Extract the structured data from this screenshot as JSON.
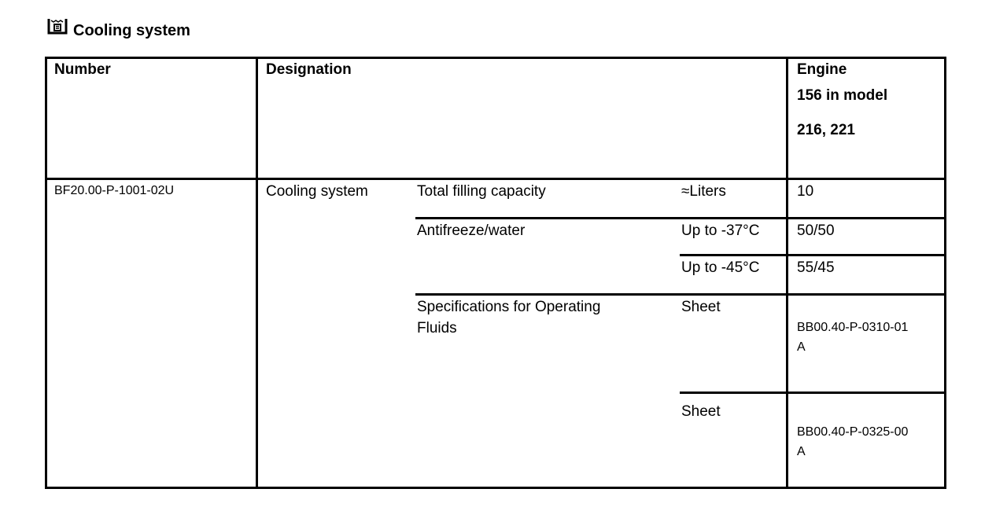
{
  "title": "Cooling system",
  "title_icon": "coolant-reservoir-icon",
  "headers": {
    "number": "Number",
    "designation": "Designation",
    "engine_line1": "Engine",
    "engine_line2": "156 in model",
    "engine_line3": "216, 221"
  },
  "row": {
    "number": "BF20.00-P-1001-02U",
    "designation": "Cooling system",
    "items": [
      {
        "label": "Total filling capacity",
        "unit": "≈Liters",
        "value": "10"
      },
      {
        "label": "Antifreeze/water",
        "unit": "Up to -37°C",
        "value": "50/50"
      },
      {
        "label": "",
        "unit": "Up to -45°C",
        "value": "55/45"
      },
      {
        "label_line1": "Specifications for Operating",
        "label_line2": "Fluids",
        "unit": "Sheet",
        "value_line1": "BB00.40-P-0310-01",
        "value_line2": "A"
      },
      {
        "label": "",
        "unit": "Sheet",
        "value_line1": "BB00.40-P-0325-00",
        "value_line2": "A"
      }
    ]
  }
}
